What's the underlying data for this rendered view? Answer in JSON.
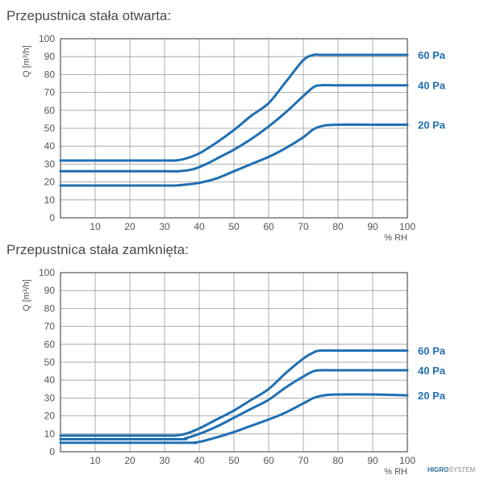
{
  "logo": {
    "part1": "HIGRO",
    "part2": "SYSTEM"
  },
  "colors": {
    "series": "#1f6fb2",
    "label": "#1f6fb2",
    "grid": "#9a9a9a",
    "axis": "#555555",
    "tick": "#555555"
  },
  "chart_data": [
    {
      "type": "line",
      "title": "Przepustnica stała otwarta:",
      "ylabel": "Q [m³/h]",
      "xlabel": "% RH",
      "xlim": [
        0,
        100
      ],
      "ylim": [
        0,
        100
      ],
      "xticks": [
        "10",
        "20",
        "30",
        "40",
        "50",
        "60",
        "70",
        "80",
        "90",
        "100"
      ],
      "yticks": [
        "0",
        "10",
        "20",
        "30",
        "40",
        "50",
        "60",
        "70",
        "80",
        "90",
        "100"
      ],
      "grid": true,
      "series": [
        {
          "name": "60 Pa",
          "x": [
            0,
            30,
            33,
            36,
            40,
            45,
            50,
            55,
            60,
            65,
            70,
            73,
            75,
            80,
            90,
            100
          ],
          "y": [
            32,
            32,
            32,
            33,
            36,
            42,
            49,
            57,
            64,
            76,
            88,
            91,
            91,
            91,
            91,
            91
          ]
        },
        {
          "name": "40 Pa",
          "x": [
            0,
            30,
            34,
            38,
            42,
            46,
            50,
            55,
            60,
            65,
            70,
            73,
            75,
            80,
            90,
            100
          ],
          "y": [
            26,
            26,
            26,
            27,
            30,
            34,
            38,
            44,
            51,
            59,
            68,
            73,
            74,
            74,
            74,
            74
          ]
        },
        {
          "name": "20 Pa",
          "x": [
            0,
            30,
            33,
            36,
            40,
            45,
            50,
            55,
            60,
            65,
            70,
            73,
            76,
            80,
            90,
            100
          ],
          "y": [
            18,
            18,
            18,
            18.5,
            19.5,
            22,
            26,
            30,
            34,
            39,
            45,
            49.5,
            51.5,
            52,
            52,
            52
          ]
        }
      ]
    },
    {
      "type": "line",
      "title": "Przepustnica stała zamknięta:",
      "ylabel": "Q [m³/h]",
      "xlabel": "% RH",
      "xlim": [
        0,
        100
      ],
      "ylim": [
        0,
        100
      ],
      "xticks": [
        "10",
        "20",
        "30",
        "40",
        "50",
        "60",
        "70",
        "80",
        "90",
        "100"
      ],
      "yticks": [
        "0",
        "10",
        "20",
        "30",
        "40",
        "50",
        "60",
        "70",
        "80",
        "90",
        "100"
      ],
      "grid": true,
      "series": [
        {
          "name": "60 Pa",
          "x": [
            0,
            30,
            33,
            36,
            40,
            45,
            50,
            55,
            60,
            65,
            70,
            73,
            75,
            80,
            90,
            100
          ],
          "y": [
            9,
            9,
            9,
            10,
            13,
            18,
            23,
            29,
            35,
            44,
            52,
            55.5,
            56.5,
            56.5,
            56.5,
            56.5
          ]
        },
        {
          "name": "40 Pa",
          "x": [
            0,
            33,
            36,
            40,
            45,
            50,
            55,
            60,
            65,
            70,
            73,
            75,
            80,
            90,
            100
          ],
          "y": [
            7,
            7,
            7.5,
            10,
            14,
            19,
            24,
            29,
            36,
            42,
            45,
            45.5,
            45.5,
            45.5,
            45.5
          ]
        },
        {
          "name": "20 Pa",
          "x": [
            0,
            36,
            38,
            40,
            45,
            50,
            55,
            60,
            65,
            70,
            73,
            76,
            80,
            90,
            100
          ],
          "y": [
            5,
            5,
            5,
            5.5,
            8,
            11,
            14.5,
            18,
            22,
            27,
            30,
            31.5,
            32,
            32,
            31.5
          ]
        }
      ]
    }
  ]
}
